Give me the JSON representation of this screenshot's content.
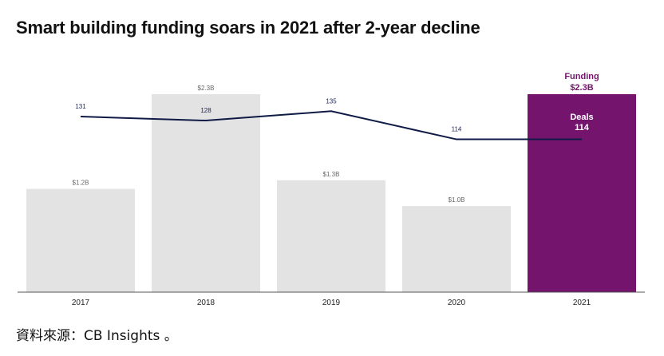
{
  "title": "Smart building funding soars in 2021 after 2-year decline",
  "source": "資料來源：CB Insights 。",
  "colors": {
    "bar_default": "#e3e3e3",
    "bar_highlight": "#74146d",
    "line": "#0f1a45",
    "callout_text": "#74146d"
  },
  "chart_data": {
    "type": "bar",
    "categories": [
      "2017",
      "2018",
      "2019",
      "2020",
      "2021"
    ],
    "series": [
      {
        "name": "Funding",
        "unit": "$B",
        "values": [
          1.2,
          2.3,
          1.3,
          1.0,
          2.3
        ],
        "labels": [
          "$1.2B",
          "$2.3B",
          "$1.3B",
          "$1.0B",
          "$2.3B"
        ]
      },
      {
        "name": "Deals",
        "type": "line",
        "values": [
          131,
          128,
          135,
          114,
          114
        ],
        "labels": [
          "131",
          "128",
          "135",
          "114",
          "114"
        ]
      }
    ],
    "highlight_index": 4,
    "callout": {
      "funding_title": "Funding",
      "funding_value": "$2.3B",
      "deals_title": "Deals",
      "deals_value": "114"
    },
    "funding_axis_range": [
      0,
      2.3
    ],
    "deals_axis_range": [
      0,
      140
    ],
    "grid": false,
    "legend": "none"
  }
}
